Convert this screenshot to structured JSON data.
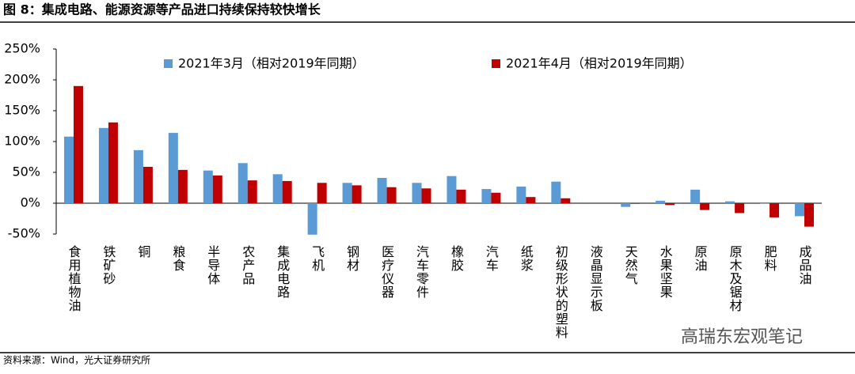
{
  "chart_data": {
    "type": "bar",
    "title": "图 8：集成电路、能源资源等产品进口持续保持较快增长",
    "source": "资料来源：Wind，光大证券研究所",
    "watermark": "高瑞东宏观笔记",
    "categories": [
      "食用植物油",
      "铁矿砂",
      "铜",
      "粮食",
      "半导体",
      "农产品",
      "集成电路",
      "飞机",
      "钢材",
      "医疗仪器",
      "汽车零件",
      "橡胶",
      "汽车",
      "纸浆",
      "初级形状的塑料",
      "液晶显示板",
      "天然气",
      "水果坚果",
      "原油",
      "原木及锯材",
      "肥料",
      "成品油"
    ],
    "series": [
      {
        "name": "2021年3月（相对2019年同期）",
        "color": "#5b9bd5",
        "values": [
          108,
          122,
          86,
          114,
          53,
          65,
          47,
          -51,
          33,
          41,
          33,
          44,
          23,
          27,
          35,
          0,
          -6,
          4,
          22,
          3,
          -1,
          -21
        ]
      },
      {
        "name": "2021年4月（相对2019年同期）",
        "color": "#c00000",
        "values": [
          190,
          131,
          59,
          54,
          45,
          37,
          36,
          33,
          29,
          26,
          24,
          22,
          17,
          10,
          8,
          0,
          -1,
          -3,
          -11,
          -16,
          -23,
          -38
        ]
      }
    ],
    "ylim": [
      -50,
      250
    ],
    "yticks": [
      {
        "value": -50,
        "label": "-50%"
      },
      {
        "value": 0,
        "label": "0%"
      },
      {
        "value": 50,
        "label": "50%"
      },
      {
        "value": 100,
        "label": "100%"
      },
      {
        "value": 150,
        "label": "150%"
      },
      {
        "value": 200,
        "label": "200%"
      },
      {
        "value": 250,
        "label": "250%"
      }
    ]
  }
}
